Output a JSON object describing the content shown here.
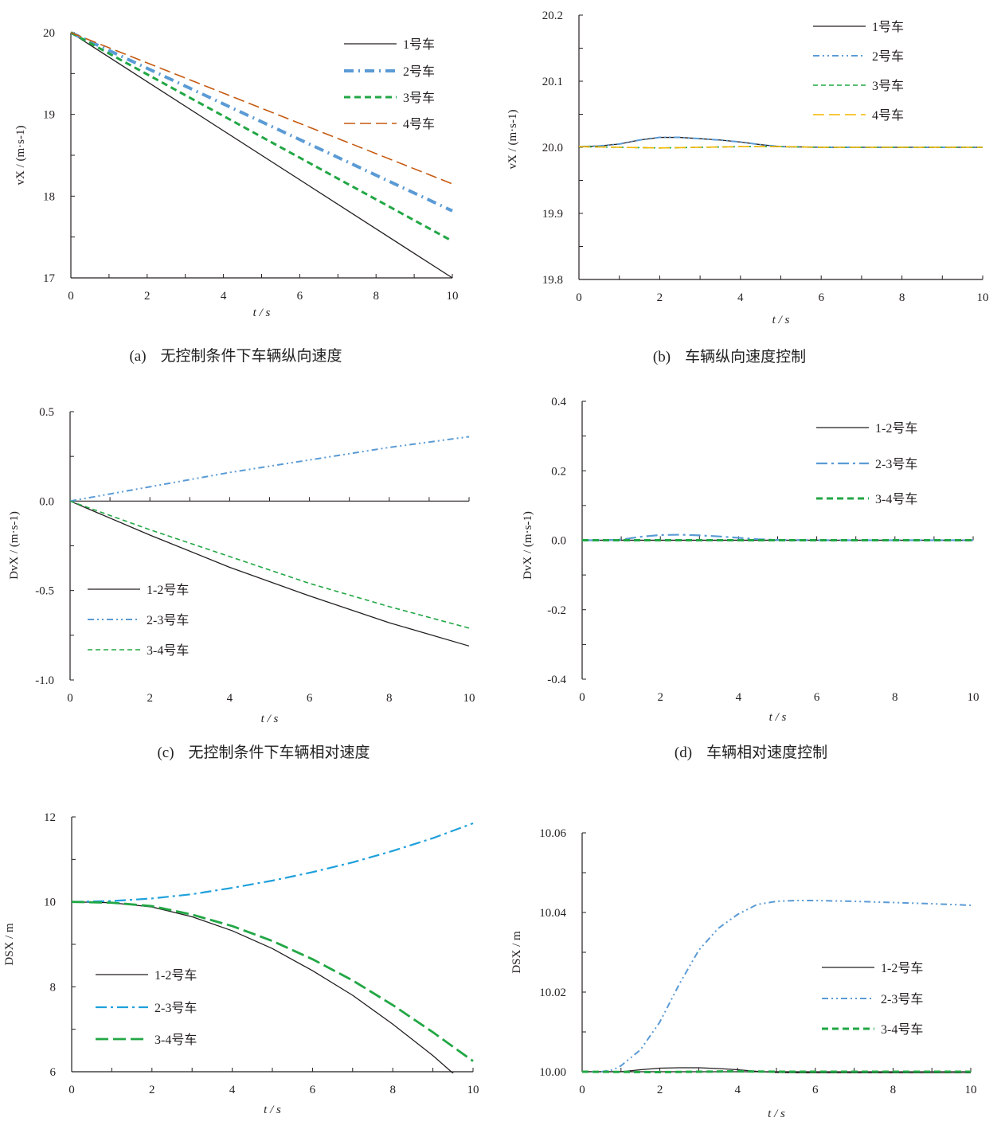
{
  "chart_data": [
    {
      "id": "a",
      "type": "line",
      "caption_label": "(a)",
      "caption": "无控制条件下车辆纵向速度",
      "xlabel": "t / s",
      "ylabel": "vX / (m·s-1)",
      "xlim": [
        0,
        10
      ],
      "ylim": [
        17,
        20
      ],
      "xticks": [
        0,
        2,
        4,
        6,
        8,
        10
      ],
      "yticks": [
        17,
        18,
        19,
        20
      ],
      "ytick_labels": [
        "17",
        "18",
        "19",
        "20"
      ],
      "legend_position": "top-right",
      "series": [
        {
          "name": "1号车",
          "color": "#231f20",
          "style": "solid",
          "x": [
            0,
            10
          ],
          "y": [
            20,
            17.0
          ]
        },
        {
          "name": "2号车",
          "color": "#5b9bd5",
          "style": "dashdot-thick",
          "x": [
            0,
            10
          ],
          "y": [
            20,
            17.82
          ]
        },
        {
          "name": "3号车",
          "color": "#22a745",
          "style": "dash-thick",
          "x": [
            0,
            10
          ],
          "y": [
            20,
            17.45
          ]
        },
        {
          "name": "4号车",
          "color": "#c55a11",
          "style": "longdash",
          "x": [
            0,
            10
          ],
          "y": [
            20,
            18.15
          ]
        }
      ]
    },
    {
      "id": "b",
      "type": "line",
      "caption_label": "(b)",
      "caption": "车辆纵向速度控制",
      "xlabel": "t / s",
      "ylabel": "vX / (m·s-1)",
      "xlim": [
        0,
        10
      ],
      "ylim": [
        19.8,
        20.2
      ],
      "xticks": [
        0,
        2,
        4,
        6,
        8,
        10
      ],
      "yticks": [
        19.8,
        19.9,
        20.0,
        20.1,
        20.2
      ],
      "ytick_labels": [
        "19.8",
        "19.9",
        "20.0",
        "20.1",
        "20.2"
      ],
      "legend_position": "top-right",
      "series": [
        {
          "name": "1号车",
          "color": "#231f20",
          "style": "solid",
          "x": [
            0,
            0.5,
            1,
            1.5,
            2,
            2.5,
            3,
            3.5,
            4,
            4.5,
            5,
            6,
            7,
            8,
            9,
            10
          ],
          "y": [
            20.001,
            20.002,
            20.005,
            20.011,
            20.015,
            20.015,
            20.013,
            20.011,
            20.008,
            20.004,
            20.001,
            20.0,
            20.0,
            20.0,
            20.0,
            20.0
          ]
        },
        {
          "name": "2号车",
          "color": "#5b9bd5",
          "style": "dashdotdot",
          "x": [
            0,
            0.5,
            1,
            1.5,
            2,
            2.5,
            3,
            3.5,
            4,
            4.5,
            5,
            6,
            7,
            8,
            9,
            10
          ],
          "y": [
            20.001,
            20.002,
            20.005,
            20.011,
            20.015,
            20.015,
            20.013,
            20.011,
            20.008,
            20.004,
            20.001,
            20.0,
            20.0,
            20.0,
            20.0,
            20.0
          ]
        },
        {
          "name": "3号车",
          "color": "#22a745",
          "style": "dash",
          "x": [
            0,
            1,
            2,
            3,
            4,
            5,
            6,
            8,
            10
          ],
          "y": [
            20.001,
            20.0,
            19.999,
            20.0,
            20.001,
            20.001,
            20.0,
            20.0,
            20.0
          ]
        },
        {
          "name": "4号车",
          "color": "#f5b800",
          "style": "longdash",
          "x": [
            0,
            1,
            2,
            3,
            4,
            5,
            6,
            8,
            10
          ],
          "y": [
            20.001,
            20.0,
            19.999,
            20.0,
            20.001,
            20.001,
            20.0,
            20.0,
            20.0
          ]
        }
      ]
    },
    {
      "id": "c",
      "type": "line",
      "caption_label": "(c)",
      "caption": "无控制条件下车辆相对速度",
      "xlabel": "t / s",
      "ylabel": "DvX / (m·s-1)",
      "xlim": [
        0,
        10
      ],
      "ylim": [
        -1.0,
        0.5
      ],
      "xticks": [
        0,
        2,
        4,
        6,
        8,
        10
      ],
      "yticks": [
        -1.0,
        -0.5,
        0.0,
        0.5
      ],
      "ytick_labels": [
        "-1.0",
        "-0.5",
        "0.0",
        "0.5"
      ],
      "legend_position": "bottom-left",
      "series": [
        {
          "name": "1-2号车",
          "color": "#231f20",
          "style": "solid",
          "x": [
            0,
            2,
            4,
            6,
            8,
            10
          ],
          "y": [
            0,
            -0.19,
            -0.37,
            -0.53,
            -0.68,
            -0.81
          ]
        },
        {
          "name": "2-3号车",
          "color": "#5b9bd5",
          "style": "dashdotdot",
          "x": [
            0,
            2,
            4,
            6,
            8,
            10
          ],
          "y": [
            0,
            0.08,
            0.16,
            0.23,
            0.3,
            0.36
          ]
        },
        {
          "name": "3-4号车",
          "color": "#22a745",
          "style": "dash",
          "x": [
            0,
            2,
            4,
            6,
            8,
            10
          ],
          "y": [
            0,
            -0.16,
            -0.31,
            -0.46,
            -0.59,
            -0.71
          ]
        }
      ]
    },
    {
      "id": "d",
      "type": "line",
      "caption_label": "(d)",
      "caption": "车辆相对速度控制",
      "xlabel": "t / s",
      "ylabel": "DvX / (m·s-1)",
      "xlim": [
        0,
        10
      ],
      "ylim": [
        -0.4,
        0.4
      ],
      "xticks": [
        0,
        2,
        4,
        6,
        8,
        10
      ],
      "yticks": [
        -0.4,
        -0.2,
        0.0,
        0.2,
        0.4
      ],
      "ytick_labels": [
        "-0.4",
        "-0.2",
        "0.0",
        "0.2",
        "0.4"
      ],
      "legend_position": "top-right",
      "series": [
        {
          "name": "1-2号车",
          "color": "#231f20",
          "style": "solid",
          "x": [
            0,
            10
          ],
          "y": [
            0,
            0
          ]
        },
        {
          "name": "2-3号车",
          "color": "#5b9bd5",
          "style": "dashdot",
          "x": [
            0,
            0.5,
            1,
            1.5,
            2,
            2.5,
            3,
            3.5,
            4,
            4.5,
            5,
            6,
            8,
            10
          ],
          "y": [
            0,
            0,
            0.002,
            0.01,
            0.015,
            0.016,
            0.014,
            0.011,
            0.007,
            0.003,
            0.001,
            0,
            0,
            0
          ]
        },
        {
          "name": "3-4号车",
          "color": "#22a745",
          "style": "dash-thick",
          "x": [
            0,
            10
          ],
          "y": [
            0,
            0
          ]
        }
      ]
    },
    {
      "id": "e",
      "type": "line",
      "caption_label": "",
      "caption": "",
      "xlabel": "t / s",
      "ylabel": "DSX / m",
      "xlim": [
        0,
        10
      ],
      "ylim": [
        6,
        12
      ],
      "xticks": [
        0,
        2,
        4,
        6,
        8,
        10
      ],
      "yticks": [
        6,
        8,
        10,
        12
      ],
      "ytick_labels": [
        "6",
        "8",
        "10",
        "12"
      ],
      "legend_position": "bottom-left",
      "series": [
        {
          "name": "1-2号车",
          "color": "#231f20",
          "style": "solid",
          "x": [
            0,
            1,
            2,
            3,
            4,
            5,
            6,
            7,
            8,
            9,
            10
          ],
          "y": [
            10,
            9.98,
            9.88,
            9.65,
            9.32,
            8.9,
            8.38,
            7.8,
            7.12,
            6.38,
            5.55
          ]
        },
        {
          "name": "2-3号车",
          "color": "#1ea0dc",
          "style": "dashdot",
          "x": [
            0,
            1,
            2,
            3,
            4,
            5,
            6,
            7,
            8,
            9,
            10
          ],
          "y": [
            10,
            10.02,
            10.08,
            10.18,
            10.33,
            10.5,
            10.7,
            10.93,
            11.2,
            11.5,
            11.85
          ]
        },
        {
          "name": "3-4号车",
          "color": "#22a745",
          "style": "longdash-thick",
          "x": [
            0,
            1,
            2,
            3,
            4,
            5,
            6,
            7,
            8,
            9,
            10
          ],
          "y": [
            10,
            9.98,
            9.9,
            9.7,
            9.43,
            9.08,
            8.65,
            8.15,
            7.57,
            6.93,
            6.25
          ]
        }
      ]
    },
    {
      "id": "f",
      "type": "line",
      "caption_label": "",
      "caption": "",
      "xlabel": "t / s",
      "ylabel": "DSX / m",
      "xlim": [
        0,
        10
      ],
      "ylim": [
        10.0,
        10.06
      ],
      "xticks": [
        0,
        2,
        4,
        6,
        8,
        10
      ],
      "yticks": [
        10.0,
        10.02,
        10.04,
        10.06
      ],
      "ytick_labels": [
        "10.00",
        "10.02",
        "10.04",
        "10.06"
      ],
      "legend_position": "center-right",
      "series": [
        {
          "name": "1-2号车",
          "color": "#231f20",
          "style": "solid",
          "x": [
            0,
            1,
            1.5,
            2,
            2.5,
            3,
            3.5,
            4,
            4.5,
            5,
            6,
            8,
            10
          ],
          "y": [
            10.0,
            10.0,
            10.0005,
            10.0009,
            10.001,
            10.001,
            10.0008,
            10.0005,
            10.0001,
            9.9998,
            9.9997,
            9.9997,
            9.9996
          ]
        },
        {
          "name": "2-3号车",
          "color": "#5b9bd5",
          "style": "dashdotdot",
          "x": [
            0,
            0.5,
            0.8,
            1,
            1.5,
            2,
            2.5,
            3,
            3.5,
            4,
            4.5,
            5,
            5.5,
            6,
            7,
            8,
            9,
            10
          ],
          "y": [
            10.0,
            10.0,
            10.0005,
            10.0015,
            10.0055,
            10.0125,
            10.022,
            10.0305,
            10.036,
            10.0395,
            10.042,
            10.0428,
            10.043,
            10.043,
            10.0428,
            10.0425,
            10.0422,
            10.0418
          ]
        },
        {
          "name": "3-4号车",
          "color": "#22a745",
          "style": "dash-thick",
          "x": [
            0,
            2,
            3,
            4,
            5,
            10
          ],
          "y": [
            10.0,
            9.9999,
            10.0,
            10.0001,
            10.0,
            10.0
          ]
        }
      ]
    }
  ]
}
